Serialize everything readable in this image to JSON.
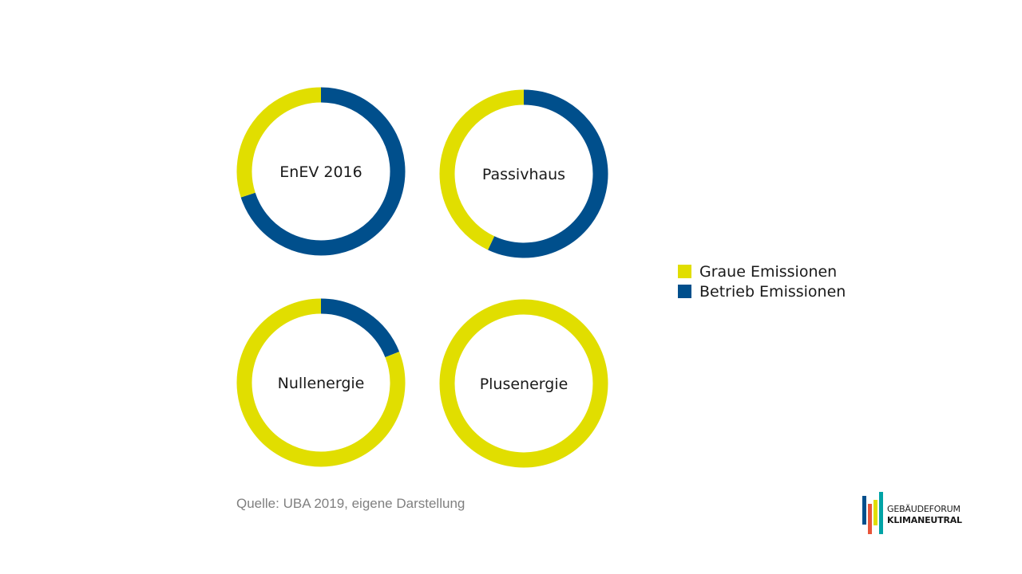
{
  "chart_data": {
    "type": "pie",
    "title": "",
    "series_names": [
      "Graue Emissionen",
      "Betrieb Emissionen"
    ],
    "colors": {
      "graue": "#e1de00",
      "betrieb": "#004f8c"
    },
    "charts": [
      {
        "label": "EnEV 2016",
        "graue": 30,
        "betrieb": 70
      },
      {
        "label": "Passivhaus",
        "graue": 43,
        "betrieb": 57
      },
      {
        "label": "Nullenergie",
        "graue": 81,
        "betrieb": 19
      },
      {
        "label": "Plusenergie",
        "graue": 100,
        "betrieb": 0
      }
    ]
  },
  "legend": {
    "items": [
      {
        "label": "Graue Emissionen",
        "color": "#e1de00"
      },
      {
        "label": "Betrieb Emissionen",
        "color": "#004f8c"
      }
    ]
  },
  "source": "Quelle: UBA 2019, eigene Darstellung",
  "logo": {
    "line1": "GEBÄUDEFORUM",
    "line2": "KLIMANEUTRAL",
    "bar_colors": [
      "#004f8c",
      "#e8553a",
      "#e1de00",
      "#00a3a6"
    ]
  }
}
